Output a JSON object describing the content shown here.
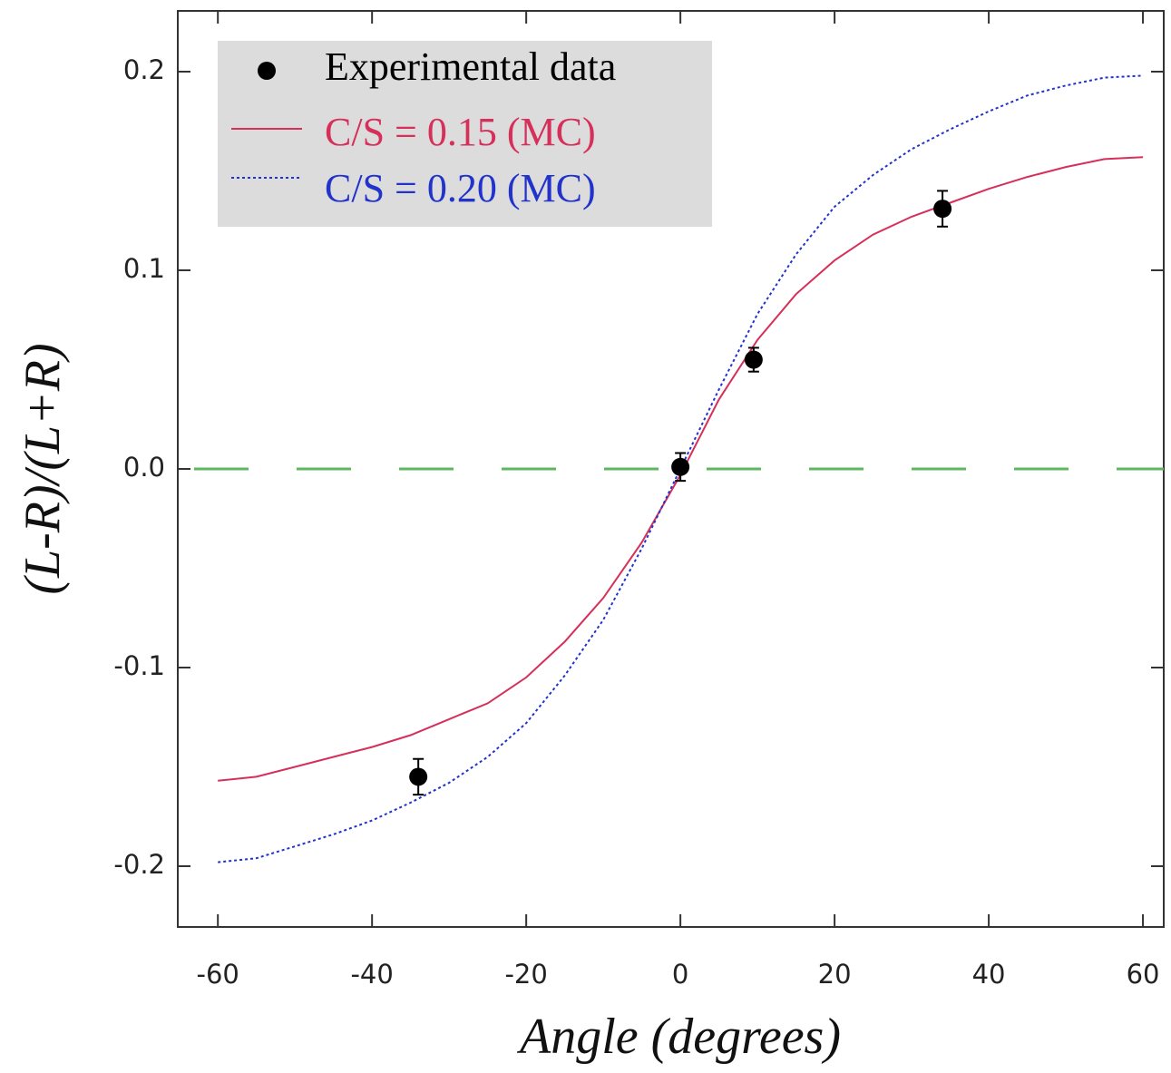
{
  "chart_data": {
    "type": "scatter",
    "xlabel": "Angle (degrees)",
    "ylabel": "(L-R)/(L+R)",
    "xlim": [
      -65.2,
      62.7
    ],
    "ylim": [
      -0.2306,
      0.2306
    ],
    "xticks": [
      -60,
      -40,
      -20,
      0,
      20,
      40,
      60
    ],
    "yticks": [
      -0.2,
      -0.1,
      {
        "value": 0,
        "label": "0.0"
      },
      0.1,
      0.2
    ],
    "hline": {
      "value": 0,
      "color": "#5cb85c"
    },
    "legend": "upper left",
    "series": [
      {
        "name": "Experimental data",
        "style": "points",
        "color": "#000000",
        "x": [
          -34,
          0,
          9.5,
          34
        ],
        "values": [
          -0.155,
          0.001,
          0.055,
          0.131
        ],
        "errors": [
          0.009,
          0.007,
          0.006,
          0.009
        ]
      },
      {
        "name": "C/S = 0.15 (MC)",
        "style": "solid",
        "color": "#d62f5a",
        "x": [
          -60,
          -55,
          -50,
          -45,
          -40,
          -35,
          -30,
          -25,
          -20,
          -15,
          -10,
          -5,
          0,
          5,
          10,
          15,
          20,
          25,
          30,
          35,
          40,
          45,
          50,
          55,
          60
        ],
        "values": [
          -0.157,
          -0.155,
          -0.15,
          -0.145,
          -0.14,
          -0.134,
          -0.126,
          -0.118,
          -0.105,
          -0.087,
          -0.065,
          -0.037,
          -0.003,
          0.035,
          0.065,
          0.088,
          0.105,
          0.118,
          0.127,
          0.134,
          0.141,
          0.147,
          0.152,
          0.156,
          0.157
        ]
      },
      {
        "name": "C/S = 0.20 (MC)",
        "style": "dotted",
        "color": "#2233cc",
        "x": [
          -60,
          -55,
          -50,
          -45,
          -40,
          -35,
          -30,
          -25,
          -20,
          -15,
          -10,
          -5,
          0,
          5,
          10,
          15,
          20,
          25,
          30,
          35,
          40,
          45,
          50,
          55,
          60
        ],
        "values": [
          -0.198,
          -0.196,
          -0.19,
          -0.184,
          -0.177,
          -0.168,
          -0.158,
          -0.145,
          -0.128,
          -0.104,
          -0.076,
          -0.04,
          0,
          0.04,
          0.078,
          0.108,
          0.132,
          0.148,
          0.161,
          0.171,
          0.18,
          0.188,
          0.193,
          0.197,
          0.198
        ]
      }
    ]
  }
}
